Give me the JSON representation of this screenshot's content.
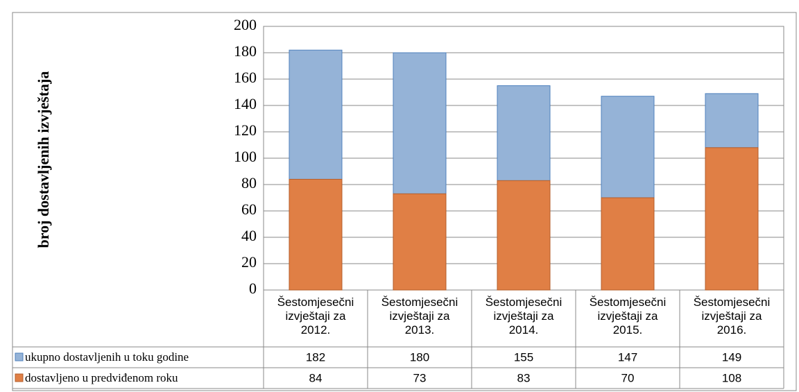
{
  "chart_data": {
    "type": "bar",
    "y_axis_label": "broj dostavljenih izvještaja",
    "categories": [
      "Šestomjesečni izvještaji za 2012.",
      "Šestomjesečni izvještaji za 2013.",
      "Šestomjesečni izvještaji za 2014.",
      "Šestomjesečni izvještaji za 2015.",
      "Šestomjesečni izvještaji za 2016."
    ],
    "series": [
      {
        "name": "ukupno dostavljenih u toku godine",
        "color": "#95b3d7",
        "stroke": "#4f81bd",
        "values": [
          182,
          180,
          155,
          147,
          149
        ]
      },
      {
        "name": "dostavljeno u predviđenom roku",
        "color": "#e07f45",
        "stroke": "#b35d2a",
        "values": [
          84,
          73,
          83,
          70,
          108
        ]
      }
    ],
    "ylim": [
      0,
      200
    ],
    "yticks": [
      0,
      20,
      40,
      60,
      80,
      100,
      120,
      140,
      160,
      180,
      200
    ],
    "grid": true
  }
}
